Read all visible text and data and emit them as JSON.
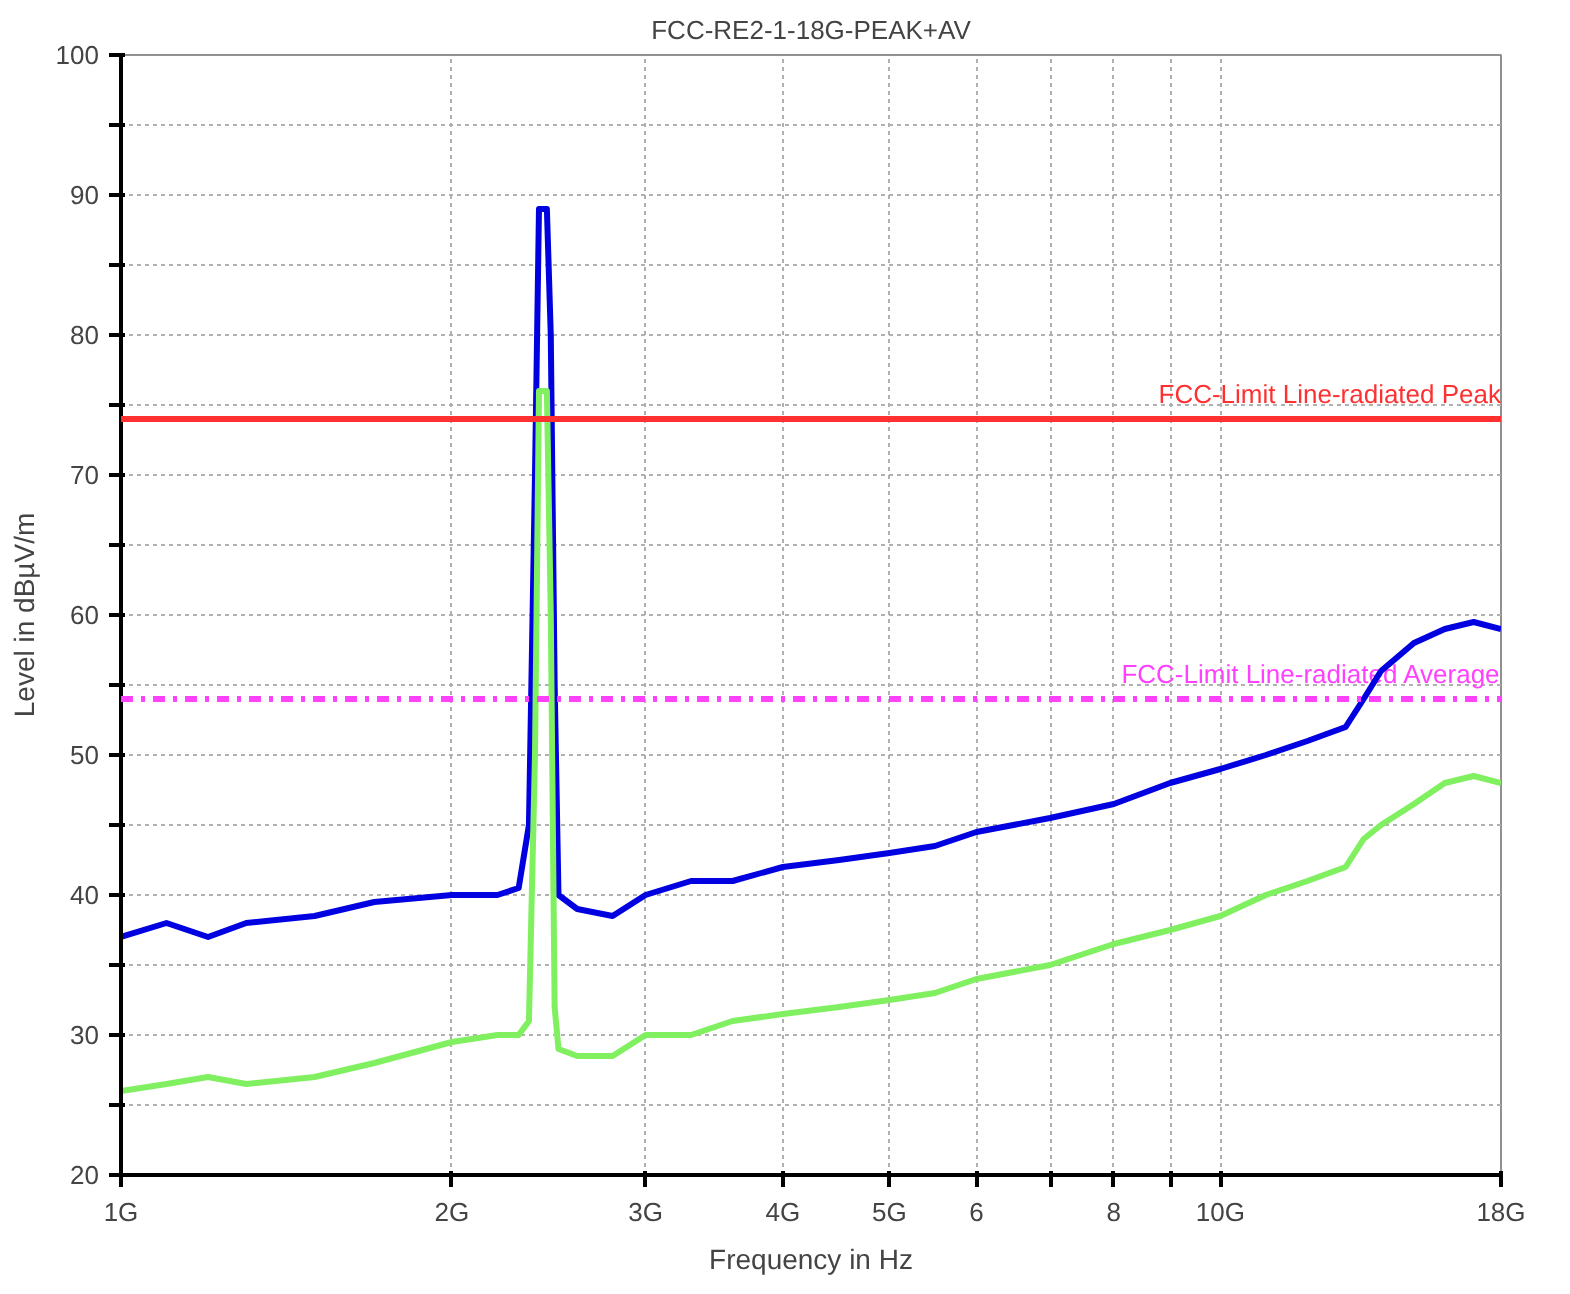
{
  "chart_data": {
    "type": "line",
    "title": "FCC-RE2-1-18G-PEAK+AV",
    "xlabel": "Frequency in Hz",
    "ylabel": "Level in dBµV/m",
    "log": "x",
    "grid": true,
    "xlim": [
      1,
      18
    ],
    "xticks": [
      {
        "value": 1,
        "label": "1G"
      },
      {
        "value": 2,
        "label": "2G"
      },
      {
        "value": 3,
        "label": "3G"
      },
      {
        "value": 4,
        "label": "4G"
      },
      {
        "value": 5,
        "label": "5G"
      },
      6,
      {
        "value": 7,
        "label": null
      },
      8,
      {
        "value": 9,
        "label": null
      },
      {
        "value": 10,
        "label": "10G"
      },
      {
        "value": 18,
        "label": "18G"
      }
    ],
    "ylim": [
      20,
      100
    ],
    "yticks": [
      20,
      {
        "value": 25,
        "label": null
      },
      30,
      {
        "value": 35,
        "label": null
      },
      40,
      {
        "value": 45,
        "label": null
      },
      50,
      {
        "value": 55,
        "label": null
      },
      60,
      {
        "value": 65,
        "label": null
      },
      70,
      {
        "value": 75,
        "label": null
      },
      80,
      {
        "value": 85,
        "label": null
      },
      90,
      {
        "value": 95,
        "label": null
      },
      100
    ],
    "x": [
      1,
      1.1,
      1.2,
      1.3,
      1.5,
      1.7,
      2,
      2.2,
      2.3,
      2.35,
      2.38,
      2.4,
      2.44,
      2.46,
      2.48,
      2.5,
      2.6,
      2.8,
      3,
      3.3,
      3.6,
      4,
      4.5,
      5,
      5.5,
      6,
      7,
      8,
      9,
      10,
      11,
      12,
      13,
      13.5,
      14,
      15,
      16,
      17,
      18
    ],
    "series": [
      {
        "color": "#0000e0",
        "values": [
          37,
          38,
          37,
          38,
          38.5,
          39.5,
          40,
          40,
          40.5,
          45,
          70,
          89,
          89,
          80,
          55,
          40,
          39,
          38.5,
          40,
          41,
          41,
          42,
          42.5,
          43,
          43.5,
          44.5,
          45.5,
          46.5,
          48,
          49,
          50,
          51,
          52,
          54,
          56,
          58,
          59,
          59.5,
          59
        ]
      },
      {
        "color": "#80f060",
        "values": [
          26,
          26.5,
          27,
          26.5,
          27,
          28,
          29.5,
          30,
          30,
          31,
          50,
          76,
          76,
          60,
          32,
          29,
          28.5,
          28.5,
          30,
          30,
          31,
          31.5,
          32,
          32.5,
          33,
          34,
          35,
          36.5,
          37.5,
          38.5,
          40,
          41,
          42,
          44,
          45,
          46.5,
          48,
          48.5,
          48
        ]
      }
    ],
    "ref_lines": [
      {
        "axis": "y",
        "value": 74,
        "label": "FCC-Limit Line-radiated Peak",
        "color": "#ff3030",
        "line_style": "solid"
      },
      {
        "axis": "y",
        "value": 54,
        "label": "FCC-Limit Line-radiated Average",
        "color": "#ff40ff",
        "line_style": "dashdot"
      }
    ]
  }
}
